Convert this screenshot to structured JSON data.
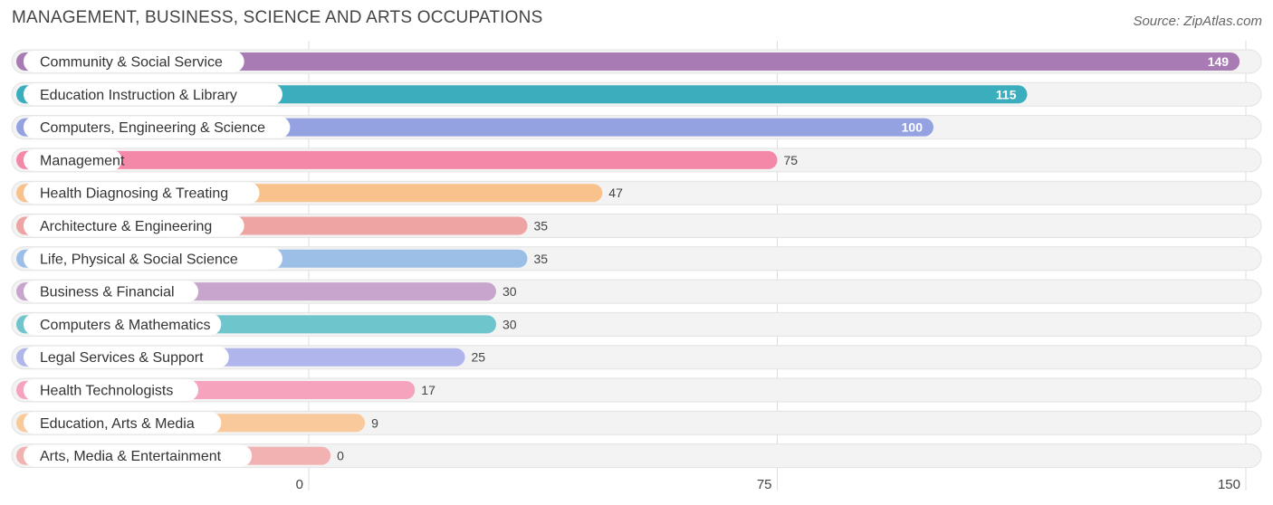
{
  "header": {
    "title": "MANAGEMENT, BUSINESS, SCIENCE AND ARTS OCCUPATIONS",
    "source": "Source: ZipAtlas.com"
  },
  "chart_data": {
    "type": "bar",
    "orientation": "horizontal",
    "title": "MANAGEMENT, BUSINESS, SCIENCE AND ARTS OCCUPATIONS",
    "xlabel": "",
    "ylabel": "",
    "xlim": [
      0,
      150
    ],
    "ticks": [
      0,
      75,
      150
    ],
    "grid": true,
    "categories": [
      "Community & Social Service",
      "Education Instruction & Library",
      "Computers, Engineering & Science",
      "Management",
      "Health Diagnosing & Treating",
      "Architecture & Engineering",
      "Life, Physical & Social Science",
      "Business & Financial",
      "Computers & Mathematics",
      "Legal Services & Support",
      "Health Technologists",
      "Education, Arts & Media",
      "Arts, Media & Entertainment"
    ],
    "values": [
      149,
      115,
      100,
      75,
      47,
      35,
      35,
      30,
      30,
      25,
      17,
      9,
      0
    ],
    "colors": [
      "#a87bb5",
      "#3aaebd",
      "#95a2e2",
      "#f488a8",
      "#f9c18c",
      "#eda4a2",
      "#9cbfe8",
      "#c7a5cc",
      "#6fc5cc",
      "#b0b5ec",
      "#f6a3bd",
      "#f9c99b",
      "#f2b2b2"
    ]
  }
}
